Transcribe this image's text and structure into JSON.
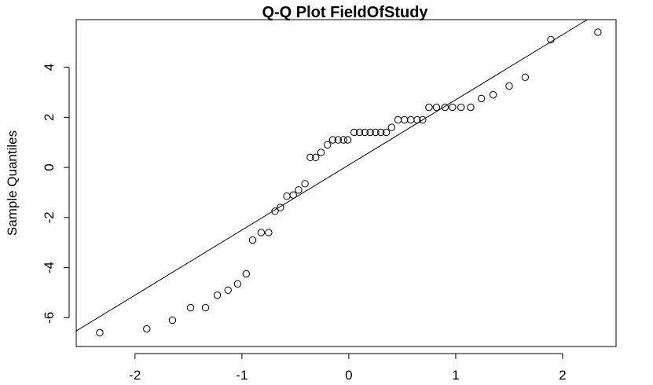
{
  "chart_data": {
    "type": "scatter",
    "title": "Q-Q Plot FieldOfStudy",
    "xlabel": "",
    "ylabel": "Sample Quantiles",
    "xlim": [
      -2.55,
      2.5
    ],
    "ylim": [
      -7.15,
      5.9
    ],
    "x_ticks": [
      -2,
      -1,
      0,
      1,
      2
    ],
    "y_ticks": [
      -6,
      -4,
      -2,
      0,
      2,
      4
    ],
    "x_tick_labels": [
      "-2",
      "-1",
      "0",
      "1",
      "2"
    ],
    "y_tick_labels": [
      "-6",
      "-4",
      "-2",
      "0",
      "2",
      "4"
    ],
    "grid": false,
    "reference_line": {
      "slope": 2.6,
      "intercept": 0.1
    },
    "series": [
      {
        "marker": "open-circle",
        "points": [
          [
            -2.33,
            -6.6
          ],
          [
            -1.89,
            -6.45
          ],
          [
            -1.65,
            -6.1
          ],
          [
            -1.48,
            -5.6
          ],
          [
            -1.34,
            -5.6
          ],
          [
            -1.23,
            -5.1
          ],
          [
            -1.13,
            -4.9
          ],
          [
            -1.04,
            -4.65
          ],
          [
            -0.96,
            -4.25
          ],
          [
            -0.9,
            -2.9
          ],
          [
            -0.82,
            -2.6
          ],
          [
            -0.75,
            -2.6
          ],
          [
            -0.69,
            -1.75
          ],
          [
            -0.64,
            -1.6
          ],
          [
            -0.58,
            -1.15
          ],
          [
            -0.52,
            -1.1
          ],
          [
            -0.47,
            -0.9
          ],
          [
            -0.41,
            -0.65
          ],
          [
            -0.36,
            0.4
          ],
          [
            -0.31,
            0.4
          ],
          [
            -0.26,
            0.6
          ],
          [
            -0.2,
            0.9
          ],
          [
            -0.15,
            1.1
          ],
          [
            -0.1,
            1.1
          ],
          [
            -0.05,
            1.1
          ],
          [
            -0.01,
            1.1
          ],
          [
            0.05,
            1.4
          ],
          [
            0.1,
            1.4
          ],
          [
            0.15,
            1.4
          ],
          [
            0.2,
            1.4
          ],
          [
            0.25,
            1.4
          ],
          [
            0.3,
            1.4
          ],
          [
            0.35,
            1.4
          ],
          [
            0.4,
            1.6
          ],
          [
            0.46,
            1.9
          ],
          [
            0.52,
            1.9
          ],
          [
            0.58,
            1.9
          ],
          [
            0.64,
            1.9
          ],
          [
            0.69,
            1.9
          ],
          [
            0.75,
            2.4
          ],
          [
            0.82,
            2.4
          ],
          [
            0.9,
            2.4
          ],
          [
            0.97,
            2.4
          ],
          [
            1.05,
            2.4
          ],
          [
            1.14,
            2.4
          ],
          [
            1.24,
            2.75
          ],
          [
            1.35,
            2.9
          ],
          [
            1.5,
            3.25
          ],
          [
            1.65,
            3.6
          ],
          [
            1.89,
            5.1
          ],
          [
            2.33,
            5.4
          ]
        ]
      }
    ]
  }
}
